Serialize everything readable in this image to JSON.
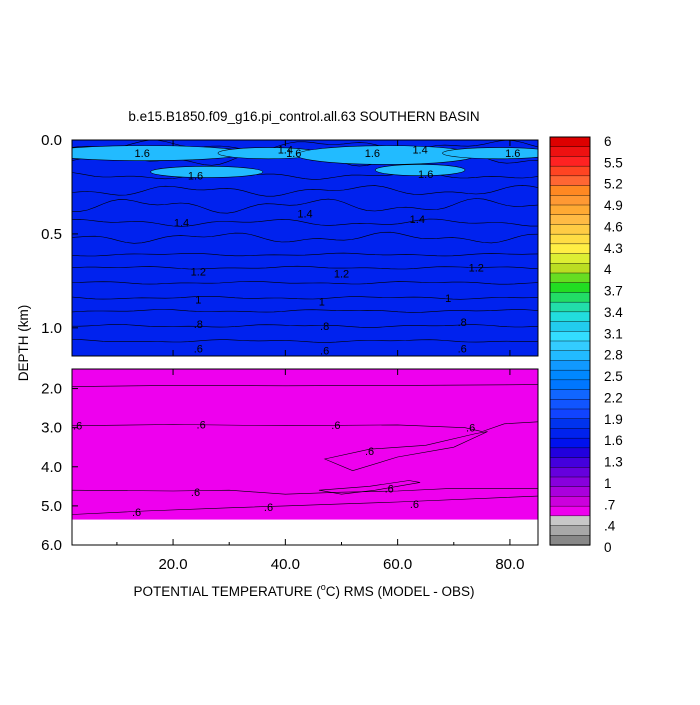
{
  "chart_data": {
    "type": "heatmap",
    "subtype": "filled-contour",
    "title": "b.e15.B1850.f09_g16.pi_control.all.63 SOUTHERN BASIN",
    "xlabel": "POTENTIAL TEMPERATURE (°C) RMS (MODEL - OBS)",
    "ylabel": "DEPTH (km)",
    "xlim": [
      2,
      85
    ],
    "x_ticks": [
      "20.0",
      "40.0",
      "60.0",
      "80.0"
    ],
    "panels": [
      {
        "name": "upper",
        "ylim": [
          0.0,
          1.15
        ],
        "y_ticks": [
          "0.0",
          "0.5",
          "1.0"
        ]
      },
      {
        "name": "lower",
        "ylim": [
          1.5,
          6.0
        ],
        "y_ticks": [
          "2.0",
          "3.0",
          "4.0",
          "5.0",
          "6.0"
        ]
      }
    ],
    "colorbar": {
      "labels": [
        "6",
        "5.5",
        "5.2",
        "4.9",
        "4.6",
        "4.3",
        "4",
        "3.7",
        "3.4",
        "3.1",
        "2.8",
        "2.5",
        "2.2",
        "1.9",
        "1.6",
        "1.3",
        "1",
        ".7",
        ".4",
        "0"
      ],
      "colors": [
        "#dd0000",
        "#ee1111",
        "#ff2222",
        "#ff4422",
        "#ff6633",
        "#ff8822",
        "#ff9933",
        "#ffaa33",
        "#ffbb44",
        "#ffcc44",
        "#ffdd44",
        "#ffee44",
        "#ddee33",
        "#bbdd22",
        "#66dd22",
        "#22dd22",
        "#22dd66",
        "#22ddaa",
        "#22dddd",
        "#22ccee",
        "#33ddff",
        "#33ccff",
        "#22bbff",
        "#1199ff",
        "#0088ff",
        "#0077ff",
        "#1166ff",
        "#1155ff",
        "#1144ff",
        "#0033ee",
        "#0022ee",
        "#0011ee",
        "#2200dd",
        "#4400dd",
        "#6600dd",
        "#8800dd",
        "#aa00dd",
        "#cc00dd",
        "#ee00ee",
        "#c8c8c8",
        "#a8a8a8",
        "#888888"
      ]
    },
    "contour_labels_upper": [
      {
        "x": 14.5,
        "y": 0.07,
        "text": "1.6"
      },
      {
        "x": 40.0,
        "y": 0.05,
        "text": "1.4"
      },
      {
        "x": 41.5,
        "y": 0.07,
        "text": "1.6"
      },
      {
        "x": 55.5,
        "y": 0.07,
        "text": "1.6"
      },
      {
        "x": 64.0,
        "y": 0.05,
        "text": "1.4"
      },
      {
        "x": 80.5,
        "y": 0.07,
        "text": "1.6"
      },
      {
        "x": 24.0,
        "y": 0.19,
        "text": "1.6"
      },
      {
        "x": 65.0,
        "y": 0.18,
        "text": "1.6"
      },
      {
        "x": 21.5,
        "y": 0.44,
        "text": "1.4"
      },
      {
        "x": 43.5,
        "y": 0.39,
        "text": "1.4"
      },
      {
        "x": 63.5,
        "y": 0.42,
        "text": "1.4"
      },
      {
        "x": 24.5,
        "y": 0.7,
        "text": "1.2"
      },
      {
        "x": 50.0,
        "y": 0.71,
        "text": "1.2"
      },
      {
        "x": 74.0,
        "y": 0.68,
        "text": "1.2"
      },
      {
        "x": 24.5,
        "y": 0.85,
        "text": "1"
      },
      {
        "x": 46.5,
        "y": 0.86,
        "text": "1"
      },
      {
        "x": 69.0,
        "y": 0.84,
        "text": "1"
      },
      {
        "x": 24.5,
        "y": 0.98,
        "text": ".8"
      },
      {
        "x": 47.0,
        "y": 0.99,
        "text": ".8"
      },
      {
        "x": 71.5,
        "y": 0.97,
        "text": ".8"
      },
      {
        "x": 24.5,
        "y": 1.11,
        "text": ".6"
      },
      {
        "x": 47.0,
        "y": 1.12,
        "text": ".6"
      },
      {
        "x": 71.5,
        "y": 1.11,
        "text": ".6"
      }
    ],
    "contour_labels_lower": [
      {
        "x": 3.0,
        "y": 2.95,
        "text": ".6"
      },
      {
        "x": 25.0,
        "y": 2.92,
        "text": ".6"
      },
      {
        "x": 49.0,
        "y": 2.93,
        "text": ".6"
      },
      {
        "x": 73.0,
        "y": 3.0,
        "text": ".6"
      },
      {
        "x": 55.0,
        "y": 3.6,
        "text": ".6"
      },
      {
        "x": 24.0,
        "y": 4.65,
        "text": ".6"
      },
      {
        "x": 58.5,
        "y": 4.55,
        "text": ".6"
      },
      {
        "x": 63.0,
        "y": 4.95,
        "text": ".6"
      },
      {
        "x": 37.0,
        "y": 5.03,
        "text": ".6"
      },
      {
        "x": 13.5,
        "y": 5.15,
        "text": ".6"
      }
    ]
  }
}
